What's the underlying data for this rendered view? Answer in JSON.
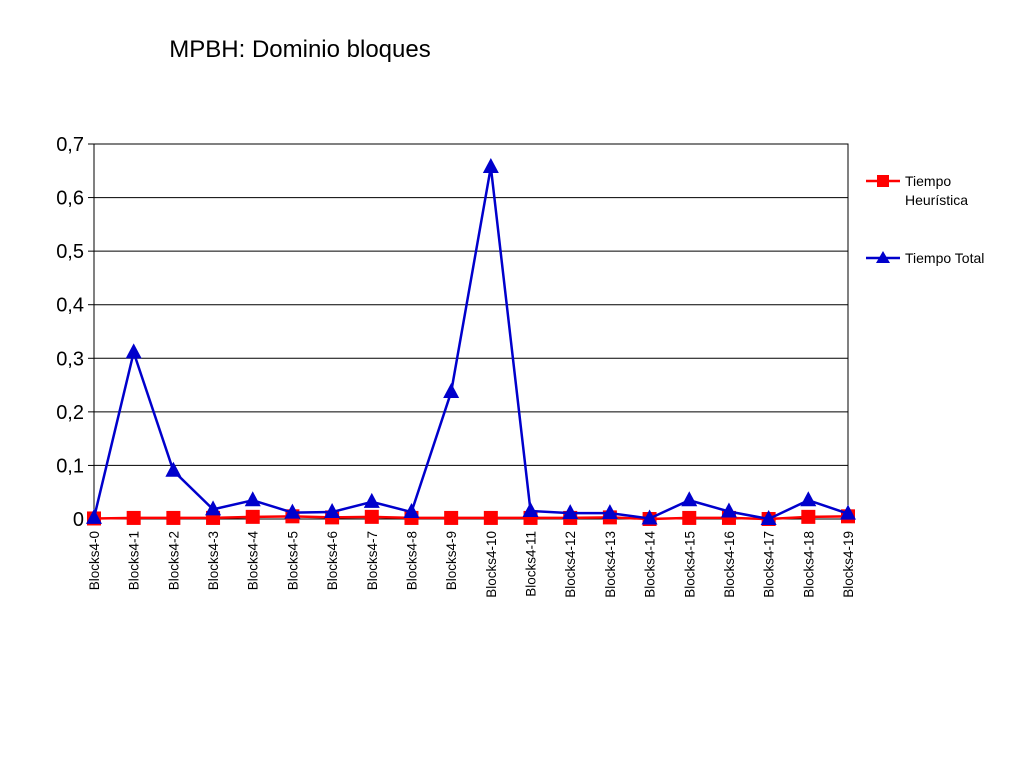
{
  "chart_data": {
    "type": "line",
    "title": "MPBH: Dominio bloques",
    "xlabel": "",
    "ylabel": "",
    "ylim": [
      0,
      0.7
    ],
    "yticks": [
      "0",
      "0,1",
      "0,2",
      "0,3",
      "0,4",
      "0,5",
      "0,6",
      "0,7"
    ],
    "grid": true,
    "legend_position": "right",
    "categories": [
      "Blocks4-0",
      "Blocks4-1",
      "Blocks4-2",
      "Blocks4-3",
      "Blocks4-4",
      "Blocks4-5",
      "Blocks4-6",
      "Blocks4-7",
      "Blocks4-8",
      "Blocks4-9",
      "Blocks4-10",
      "Blocks4-11",
      "Blocks4-12",
      "Blocks4-13",
      "Blocks4-14",
      "Blocks4-15",
      "Blocks4-16",
      "Blocks4-17",
      "Blocks4-18",
      "Blocks4-19"
    ],
    "series": [
      {
        "name": "Tiempo Heurística",
        "color": "#ff0000",
        "marker": "square",
        "values": [
          0.001,
          0.002,
          0.002,
          0.002,
          0.004,
          0.005,
          0.003,
          0.004,
          0.002,
          0.002,
          0.002,
          0.002,
          0.002,
          0.003,
          0.0,
          0.002,
          0.002,
          0.0,
          0.004,
          0.005
        ]
      },
      {
        "name": "Tiempo Total",
        "color": "#0000cc",
        "marker": "triangle",
        "values": [
          0.002,
          0.311,
          0.09,
          0.018,
          0.035,
          0.012,
          0.013,
          0.032,
          0.013,
          0.237,
          0.657,
          0.015,
          0.011,
          0.011,
          0.001,
          0.035,
          0.014,
          0.0,
          0.035,
          0.01
        ]
      }
    ]
  }
}
